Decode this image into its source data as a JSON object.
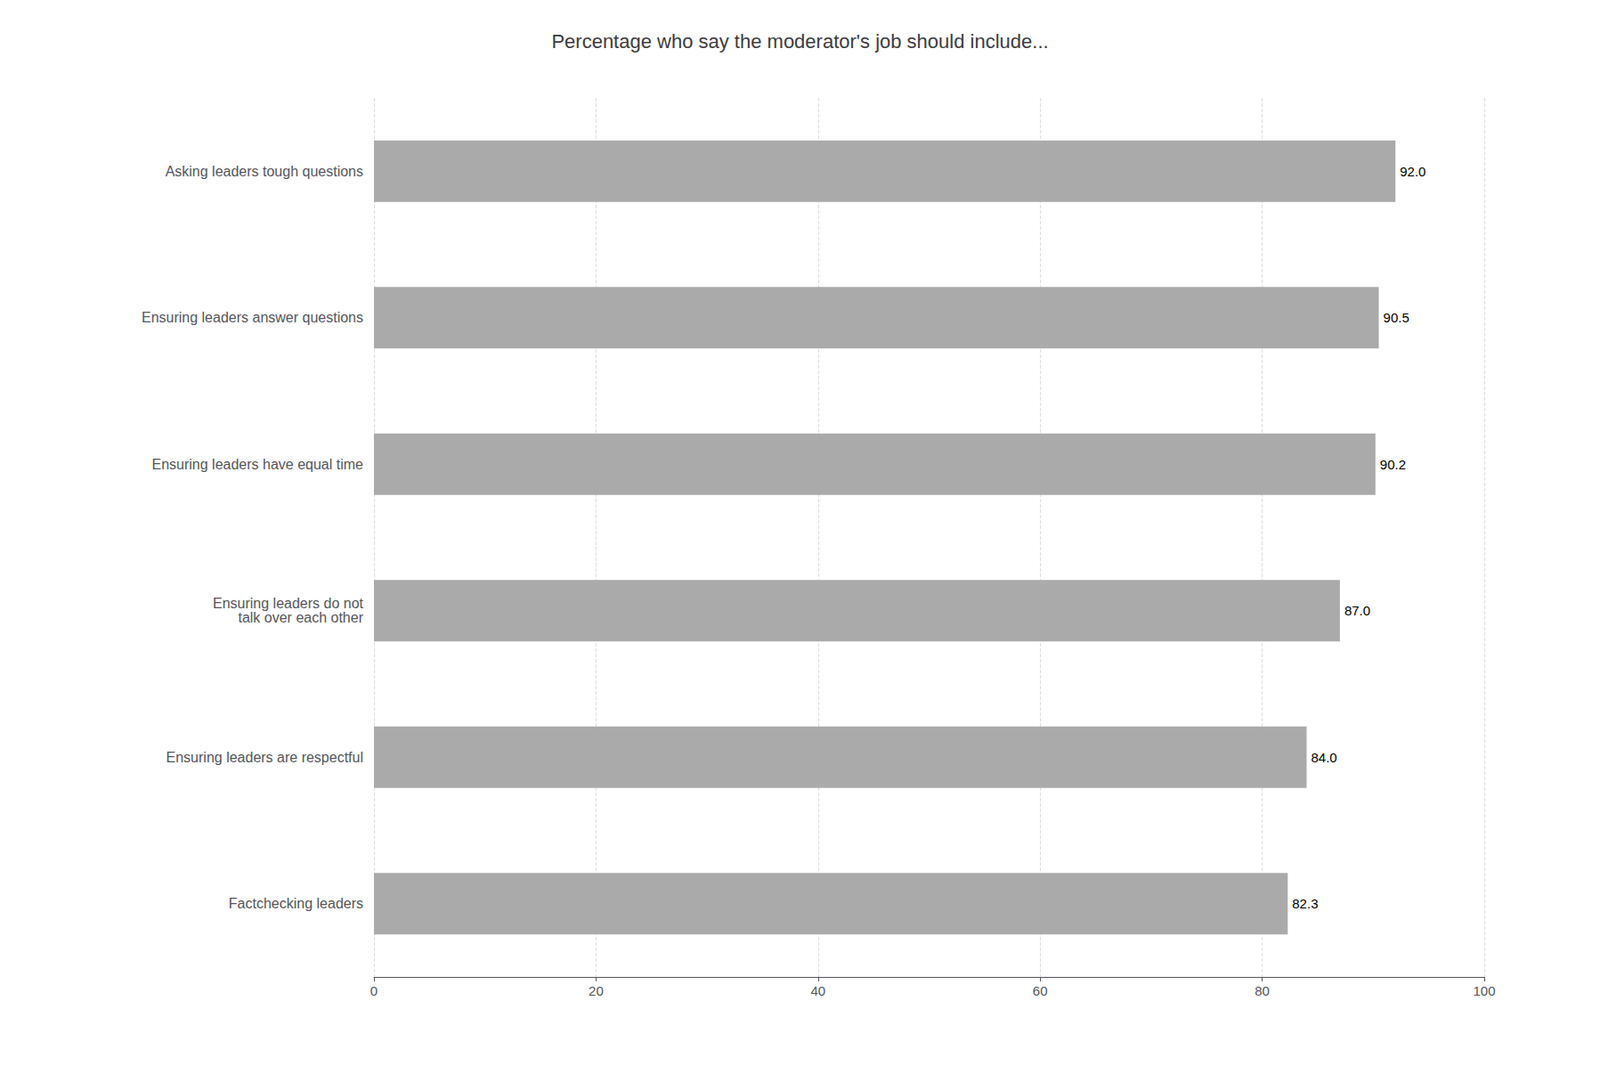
{
  "chart_data": {
    "type": "bar",
    "orientation": "horizontal",
    "title": "Percentage who say the moderator's job should include...",
    "categories": [
      "Factchecking leaders",
      "Ensuring leaders are respectful",
      "Ensuring leaders do not\ntalk over each other",
      "Ensuring leaders have equal time",
      "Ensuring leaders answer questions",
      "Asking leaders tough questions"
    ],
    "values": [
      82.3,
      84.0,
      87.0,
      90.2,
      90.5,
      92.0
    ],
    "value_labels": [
      "82.3",
      "84.0",
      "87.0",
      "90.2",
      "90.5",
      "92.0"
    ],
    "data_labels": true,
    "color": "#aaaaaa",
    "xlim": [
      0,
      100
    ],
    "xticks": [
      0,
      20,
      40,
      60,
      80,
      100
    ],
    "grid": true
  }
}
